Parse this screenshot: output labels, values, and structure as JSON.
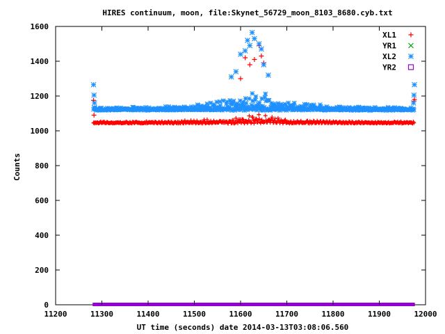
{
  "chart_data": {
    "type": "scatter",
    "title": "HIRES continuum, moon, file:Skynet_56729_moon_8103_8680.cyb.txt",
    "xlabel": "UT time (seconds) date 2014-03-13T03:08:06.560",
    "ylabel": "Counts",
    "xlim": [
      11200,
      12000
    ],
    "ylim": [
      0,
      1600
    ],
    "xticks": [
      11200,
      11300,
      11400,
      11500,
      11600,
      11700,
      11800,
      11900,
      12000
    ],
    "yticks": [
      0,
      200,
      400,
      600,
      800,
      1000,
      1200,
      1400,
      1600
    ],
    "grid": false,
    "legend_position": "top-right",
    "x_range_data": [
      11280,
      11977
    ],
    "series": [
      {
        "name": "XL1",
        "marker": "plus",
        "color": "#ff0000",
        "baseline": 1045,
        "edge_points": [
          [
            11282,
            1175
          ],
          [
            11283,
            1090
          ],
          [
            11976,
            1180
          ],
          [
            11975,
            1170
          ]
        ],
        "peak_points": [
          [
            11600,
            1300
          ],
          [
            11610,
            1420
          ],
          [
            11620,
            1380
          ],
          [
            11630,
            1410
          ],
          [
            11640,
            1490
          ],
          [
            11645,
            1430
          ],
          [
            11650,
            1390
          ]
        ]
      },
      {
        "name": "YR1",
        "marker": "x",
        "color": "#00a000",
        "values": []
      },
      {
        "name": "XL2",
        "marker": "star",
        "color": "#1e90ff",
        "baseline": 1120,
        "edge_points": [
          [
            11282,
            1265
          ],
          [
            11283,
            1205
          ],
          [
            11284,
            1160
          ],
          [
            11976,
            1265
          ],
          [
            11975,
            1205
          ],
          [
            11974,
            1160
          ]
        ],
        "peak_points": [
          [
            11580,
            1310
          ],
          [
            11590,
            1340
          ],
          [
            11600,
            1440
          ],
          [
            11610,
            1460
          ],
          [
            11615,
            1520
          ],
          [
            11620,
            1490
          ],
          [
            11625,
            1565
          ],
          [
            11630,
            1530
          ],
          [
            11640,
            1500
          ],
          [
            11645,
            1470
          ],
          [
            11650,
            1380
          ],
          [
            11660,
            1320
          ]
        ]
      },
      {
        "name": "YR2",
        "marker": "square",
        "color": "#9400d3",
        "baseline": 0
      }
    ]
  },
  "colors": {
    "axis": "#000000",
    "background": "#ffffff"
  }
}
